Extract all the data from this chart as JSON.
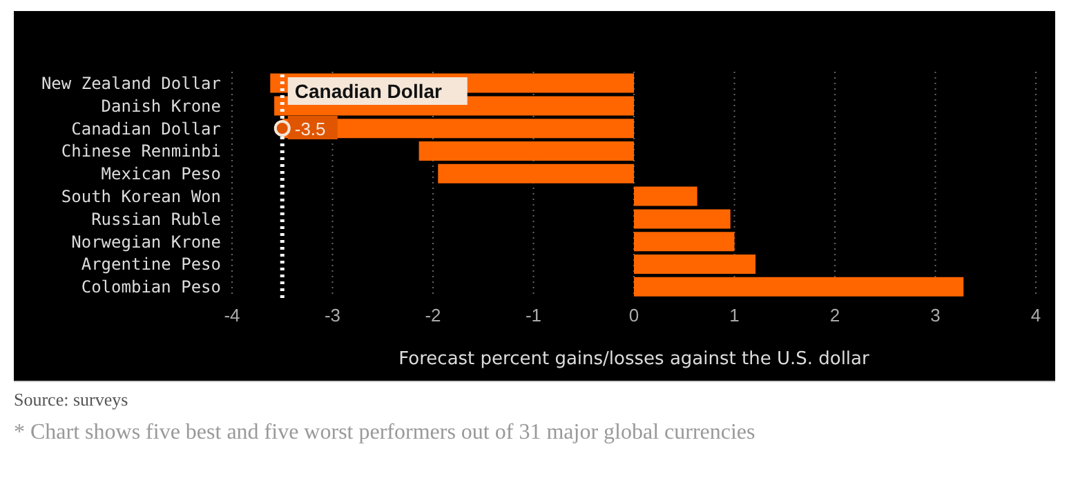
{
  "chart_data": {
    "type": "bar",
    "orientation": "horizontal",
    "categories": [
      "New Zealand Dollar",
      "Danish Krone",
      "Canadian Dollar",
      "Chinese Renminbi",
      "Mexican Peso",
      "South Korean Won",
      "Russian Ruble",
      "Norwegian Krone",
      "Argentine Peso",
      "Colombian Peso"
    ],
    "values": [
      -3.62,
      -3.58,
      -3.5,
      -2.14,
      -1.95,
      0.63,
      0.96,
      1.0,
      1.21,
      3.28
    ],
    "color": "#ff6600",
    "xlim": [
      -4,
      4
    ],
    "xticks": [
      -4,
      -3,
      -2,
      -1,
      0,
      1,
      2,
      3,
      4
    ],
    "xlabel": "Forecast percent gains/losses against the U.S. dollar",
    "grid": "x",
    "legend": false,
    "ref_lines": [
      {
        "axis": "x",
        "value": -3.5,
        "color": "#ffffff",
        "line_style": "dotted"
      }
    ],
    "annotations": [
      {
        "text": "Canadian Dollar",
        "x": -3.5,
        "y": "Canadian Dollar"
      },
      {
        "text": "-3.5",
        "x": -3.5,
        "y": "Canadian Dollar"
      },
      "Source: surveys",
      "* Chart shows five best and five worst performers out of 31 major global currencies"
    ]
  }
}
